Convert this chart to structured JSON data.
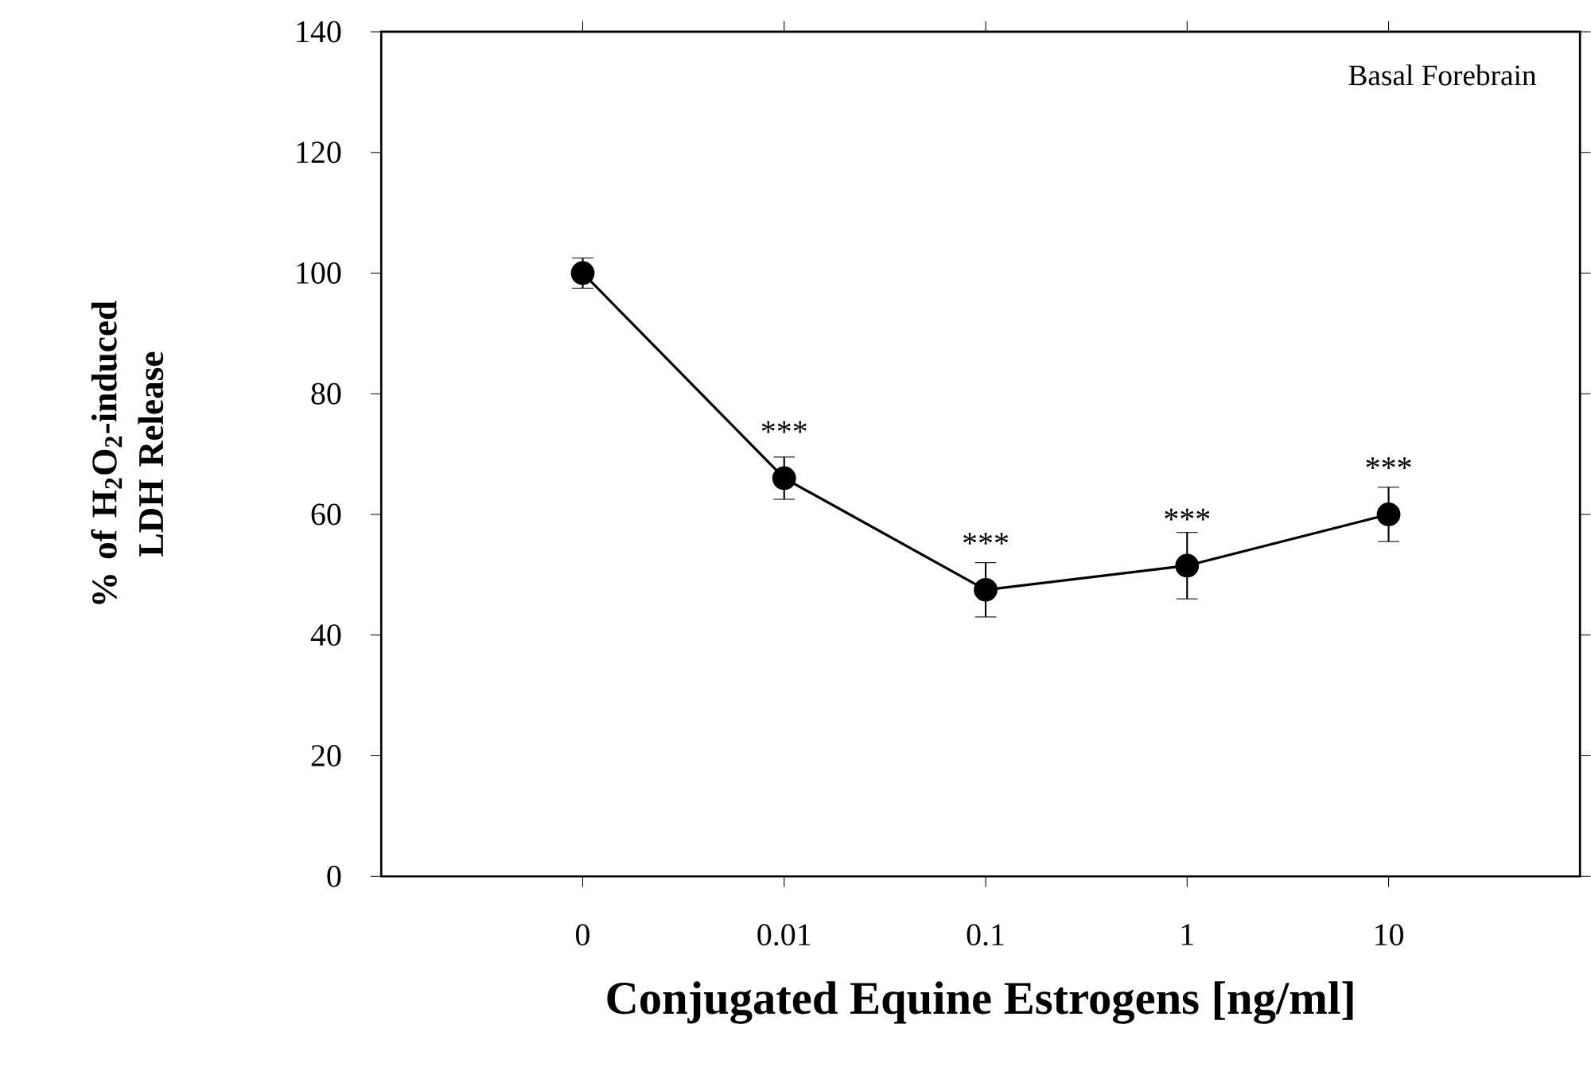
{
  "chart_data": {
    "type": "line",
    "xlabel": "Conjugated Equine Estrogens [ng/ml]",
    "ylabel": "% of H$_{2}$O$_{2}$-induced LDH Release",
    "categories": [
      "0",
      "0.01",
      "0.1",
      "1",
      "10"
    ],
    "series": [
      {
        "color": "#000000",
        "values": [
          100,
          66,
          47.5,
          51.5,
          60
        ],
        "errors": [
          2.5,
          3.5,
          4.5,
          5.5,
          4.5
        ]
      }
    ],
    "ylim": [
      0,
      140
    ],
    "yticks": [
      0,
      20,
      40,
      60,
      80,
      100,
      120,
      140
    ],
    "marker": "circle",
    "line_style": "solid",
    "annotations": [
      "Basal Forebrain",
      {
        "text": "***",
        "x": "0.01",
        "y": 66
      },
      {
        "text": "***",
        "x": "0.1",
        "y": 47.5
      },
      {
        "text": "***",
        "x": "1",
        "y": 51.5
      },
      {
        "text": "***",
        "x": "10",
        "y": 60
      }
    ]
  }
}
